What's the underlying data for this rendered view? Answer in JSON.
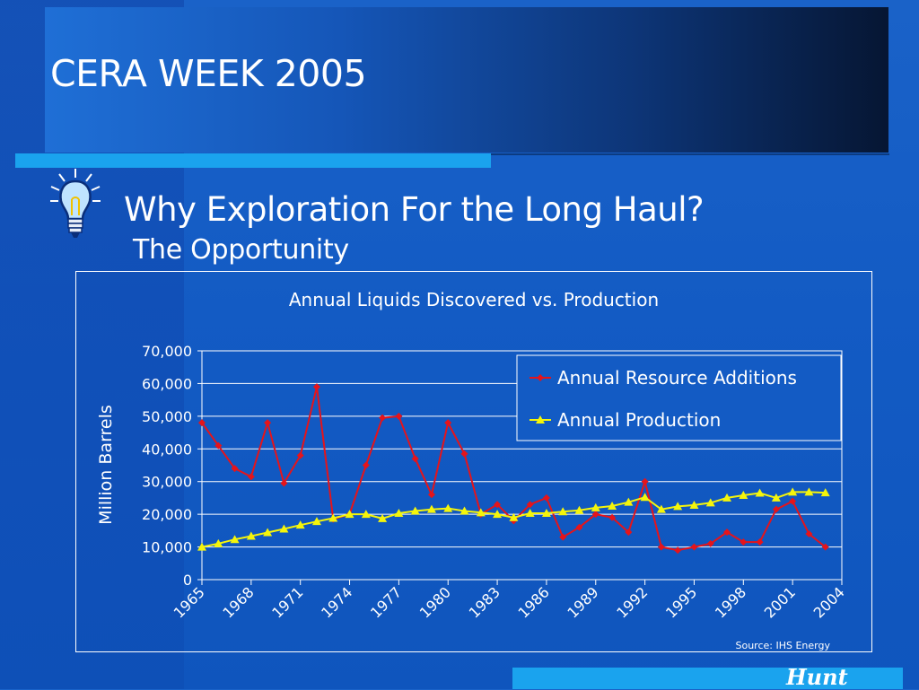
{
  "slide": {
    "title": "CERA WEEK 2005",
    "heading": "Why Exploration For the Long Haul?",
    "subheading": "The Opportunity",
    "logo": "Hunt"
  },
  "colors": {
    "background": "#135bc4",
    "accent_bar": "#1aa3ee",
    "series_additions": "#e5141b",
    "series_production": "#f5f50a"
  },
  "icons": {
    "bulb": "lightbulb-icon"
  },
  "chart_data": {
    "type": "line",
    "title": "Annual Liquids Discovered vs. Production",
    "xlabel": "",
    "ylabel": "Million Barrels",
    "ylim": [
      0,
      70000
    ],
    "yticks": [
      0,
      10000,
      20000,
      30000,
      40000,
      50000,
      60000,
      70000
    ],
    "ytick_labels": [
      "0",
      "10,000",
      "20,000",
      "30,000",
      "40,000",
      "50,000",
      "60,000",
      "70,000"
    ],
    "xlim": [
      1965,
      2004
    ],
    "xtick_labels": [
      "1965",
      "1968",
      "1971",
      "1974",
      "1977",
      "1980",
      "1983",
      "1986",
      "1989",
      "1992",
      "1995",
      "1998",
      "2001",
      "2004"
    ],
    "grid": true,
    "legend_position": "top-right",
    "source": "Source: IHS Energy",
    "x": [
      1965,
      1966,
      1967,
      1968,
      1969,
      1970,
      1971,
      1972,
      1973,
      1974,
      1975,
      1976,
      1977,
      1978,
      1979,
      1980,
      1981,
      1982,
      1983,
      1984,
      1985,
      1986,
      1987,
      1988,
      1989,
      1990,
      1991,
      1992,
      1993,
      1994,
      1995,
      1996,
      1997,
      1998,
      1999,
      2000,
      2001,
      2002,
      2003
    ],
    "series": [
      {
        "name": "Annual Resource Additions",
        "marker": "diamond",
        "values": [
          48000,
          41000,
          34000,
          31500,
          48000,
          29500,
          38000,
          59000,
          18500,
          20000,
          35000,
          49500,
          50000,
          37000,
          26000,
          48000,
          38500,
          20000,
          23000,
          18000,
          23000,
          25000,
          13000,
          16000,
          20000,
          19000,
          14500,
          30000,
          10000,
          9000,
          10000,
          11000,
          14500,
          11500,
          11500,
          21500,
          24000,
          14000,
          10000
        ]
      },
      {
        "name": "Annual Production",
        "marker": "triangle",
        "values": [
          10000,
          11000,
          12300,
          13300,
          14400,
          15500,
          16700,
          17800,
          18800,
          20000,
          20000,
          18700,
          20300,
          21000,
          21500,
          21800,
          21000,
          20500,
          20000,
          19000,
          20300,
          20300,
          20800,
          21200,
          22000,
          22500,
          23700,
          25200,
          21500,
          22400,
          22800,
          23500,
          25000,
          25800,
          26500,
          25000,
          26800,
          26800,
          26600
        ]
      }
    ]
  }
}
